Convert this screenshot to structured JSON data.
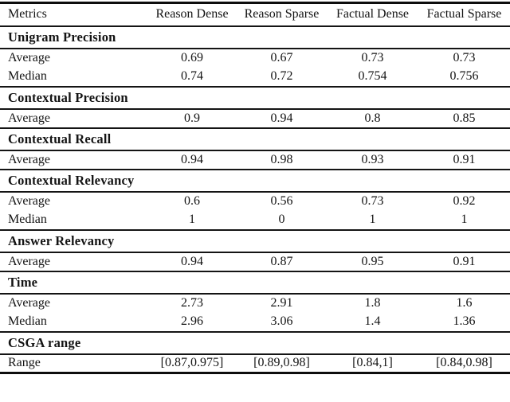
{
  "table": {
    "columns": [
      "Metrics",
      "Reason Dense",
      "Reason Sparse",
      "Factual Dense",
      "Factual Sparse"
    ],
    "sections": [
      {
        "title": "Unigram Precision",
        "rows": [
          {
            "label": "Average",
            "values": [
              "0.69",
              "0.67",
              "0.73",
              "0.73"
            ]
          },
          {
            "label": "Median",
            "values": [
              "0.74",
              "0.72",
              "0.754",
              "0.756"
            ]
          }
        ]
      },
      {
        "title": "Contextual Precision",
        "rows": [
          {
            "label": "Average",
            "values": [
              "0.9",
              "0.94",
              "0.8",
              "0.85"
            ]
          }
        ]
      },
      {
        "title": "Contextual Recall",
        "rows": [
          {
            "label": "Average",
            "values": [
              "0.94",
              "0.98",
              "0.93",
              "0.91"
            ]
          }
        ]
      },
      {
        "title": "Contextual Relevancy",
        "rows": [
          {
            "label": "Average",
            "values": [
              "0.6",
              "0.56",
              "0.73",
              "0.92"
            ]
          },
          {
            "label": "Median",
            "values": [
              "1",
              "0",
              "1",
              "1"
            ]
          }
        ]
      },
      {
        "title": "Answer Relevancy",
        "rows": [
          {
            "label": "Average",
            "values": [
              "0.94",
              "0.87",
              "0.95",
              "0.91"
            ]
          }
        ]
      },
      {
        "title": "Time",
        "rows": [
          {
            "label": "Average",
            "values": [
              "2.73",
              "2.91",
              "1.8",
              "1.6"
            ]
          },
          {
            "label": "Median",
            "values": [
              "2.96",
              "3.06",
              "1.4",
              "1.36"
            ]
          }
        ]
      },
      {
        "title": "CSGA range",
        "rows": [
          {
            "label": "Range",
            "values": [
              "[0.87,0.975]",
              "[0.89,0.98]",
              "[0.84,1]",
              "[0.84,0.98]"
            ]
          }
        ]
      }
    ]
  }
}
